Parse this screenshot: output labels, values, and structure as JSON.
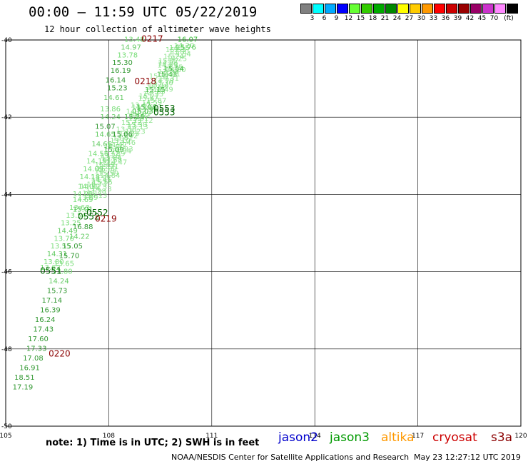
{
  "header": {
    "title": "00:00 – 11:59 UTC 05/22/2019",
    "subtitle": "12 hour collection of altimeter wave heights"
  },
  "legend": {
    "unit": "(ft)",
    "colors": [
      "#808080",
      "#00ffff",
      "#00aaff",
      "#0000ff",
      "#66ff33",
      "#33cc00",
      "#00aa00",
      "#008800",
      "#ffff00",
      "#ffcc00",
      "#ff9900",
      "#ff0000",
      "#cc0000",
      "#990000",
      "#990066",
      "#cc33cc",
      "#ff88ff",
      "#000000"
    ],
    "labels": [
      "3",
      "6",
      "9",
      "12",
      "15",
      "18",
      "21",
      "24",
      "27",
      "30",
      "33",
      "36",
      "39",
      "42",
      "45",
      "70"
    ]
  },
  "map": {
    "x_ticks": [
      "105",
      "108",
      "111",
      "114",
      "117",
      "120"
    ],
    "y_ticks": [
      "-40",
      "-42",
      "-44",
      "-46",
      "-48",
      "-50"
    ]
  },
  "chart_data": {
    "type": "scatter",
    "title": "12 hour collection of altimeter wave heights",
    "xlabel": "",
    "ylabel": "",
    "xlim": [
      105,
      120
    ],
    "ylim": [
      -50,
      -40
    ],
    "grid": true,
    "time_labels": [
      {
        "text": "0217",
        "lon": 108.95,
        "lat": -40.05,
        "color": "#8b0000"
      },
      {
        "text": "0218",
        "lon": 108.75,
        "lat": -41.15,
        "color": "#8b0000"
      },
      {
        "text": "0553",
        "lon": 109.3,
        "lat": -41.85,
        "color": "#006400"
      },
      {
        "text": "0553",
        "lon": 109.3,
        "lat": -41.95,
        "color": "#006400"
      },
      {
        "text": "0552",
        "lon": 107.35,
        "lat": -44.55,
        "color": "#006400"
      },
      {
        "text": "0552",
        "lon": 107.1,
        "lat": -44.65,
        "color": "#006400"
      },
      {
        "text": "0219",
        "lon": 107.6,
        "lat": -44.7,
        "color": "#8b0000"
      },
      {
        "text": "0551",
        "lon": 106.0,
        "lat": -46.05,
        "color": "#006400"
      },
      {
        "text": "0220",
        "lon": 106.25,
        "lat": -48.2,
        "color": "#8b0000"
      }
    ],
    "points": [
      {
        "v": "13.48",
        "lon": 108.45,
        "lat": -40.05,
        "c": "#77dd77"
      },
      {
        "v": "16.07",
        "lon": 110.0,
        "lat": -40.05,
        "c": "#33bb33"
      },
      {
        "v": "14.97",
        "lon": 108.35,
        "lat": -40.25,
        "c": "#66cc66"
      },
      {
        "v": "15.76",
        "lon": 109.95,
        "lat": -40.25,
        "c": "#55cc55"
      },
      {
        "v": "13.78",
        "lon": 108.25,
        "lat": -40.45,
        "c": "#77dd77"
      },
      {
        "v": "15.30",
        "lon": 108.1,
        "lat": -40.65,
        "c": "#339933"
      },
      {
        "v": "15.54",
        "lon": 109.6,
        "lat": -40.8,
        "c": "#44bb44"
      },
      {
        "v": "16.19",
        "lon": 108.05,
        "lat": -40.85,
        "c": "#339933"
      },
      {
        "v": "15.43",
        "lon": 109.4,
        "lat": -40.95,
        "c": "#44bb44"
      },
      {
        "v": "16.14",
        "lon": 107.9,
        "lat": -41.1,
        "c": "#339933"
      },
      {
        "v": "15.23",
        "lon": 107.95,
        "lat": -41.3,
        "c": "#339933"
      },
      {
        "v": "15.15",
        "lon": 109.05,
        "lat": -41.35,
        "c": "#44bb44"
      },
      {
        "v": "14.61",
        "lon": 107.85,
        "lat": -41.55,
        "c": "#66cc66"
      },
      {
        "v": "15.06",
        "lon": 108.8,
        "lat": -41.8,
        "c": "#44bb44"
      },
      {
        "v": "13.86",
        "lon": 107.75,
        "lat": -41.85,
        "c": "#77dd77"
      },
      {
        "v": "15.03",
        "lon": 108.7,
        "lat": -41.9,
        "c": "#44bb44"
      },
      {
        "v": "14.24",
        "lon": 107.75,
        "lat": -42.05,
        "c": "#66cc66"
      },
      {
        "v": "15.25",
        "lon": 108.45,
        "lat": -42.05,
        "c": "#44bb44"
      },
      {
        "v": "15.07",
        "lon": 107.6,
        "lat": -42.3,
        "c": "#339933"
      },
      {
        "v": "14.65",
        "lon": 107.6,
        "lat": -42.5,
        "c": "#66cc66"
      },
      {
        "v": "15.06",
        "lon": 108.1,
        "lat": -42.5,
        "c": "#339933"
      },
      {
        "v": "14.66",
        "lon": 107.5,
        "lat": -42.75,
        "c": "#66cc66"
      },
      {
        "v": "15.09",
        "lon": 107.85,
        "lat": -42.9,
        "c": "#44bb44"
      },
      {
        "v": "14.56",
        "lon": 107.4,
        "lat": -43.0,
        "c": "#77dd77"
      },
      {
        "v": "14.19",
        "lon": 107.35,
        "lat": -43.2,
        "c": "#77dd77"
      },
      {
        "v": "14.09",
        "lon": 107.25,
        "lat": -43.4,
        "c": "#77dd77"
      },
      {
        "v": "14.18",
        "lon": 107.15,
        "lat": -43.6,
        "c": "#77dd77"
      },
      {
        "v": "14.01",
        "lon": 107.1,
        "lat": -43.85,
        "c": "#77dd77"
      },
      {
        "v": "14.02",
        "lon": 106.95,
        "lat": -44.05,
        "c": "#77dd77"
      },
      {
        "v": "14.69",
        "lon": 106.95,
        "lat": -44.2,
        "c": "#77dd77"
      },
      {
        "v": "13.63",
        "lon": 106.85,
        "lat": -44.4,
        "c": "#77dd77"
      },
      {
        "v": "15.01",
        "lon": 106.95,
        "lat": -44.45,
        "c": "#44bb44"
      },
      {
        "v": "13.54",
        "lon": 106.75,
        "lat": -44.6,
        "c": "#77dd77"
      },
      {
        "v": "13.25",
        "lon": 106.6,
        "lat": -44.8,
        "c": "#77dd77"
      },
      {
        "v": "16.88",
        "lon": 106.95,
        "lat": -44.9,
        "c": "#339933"
      },
      {
        "v": "14.49",
        "lon": 106.5,
        "lat": -45.0,
        "c": "#66cc66"
      },
      {
        "v": "14.22",
        "lon": 106.85,
        "lat": -45.15,
        "c": "#66cc66"
      },
      {
        "v": "13.70",
        "lon": 106.4,
        "lat": -45.2,
        "c": "#77dd77"
      },
      {
        "v": "13.55",
        "lon": 106.3,
        "lat": -45.4,
        "c": "#77dd77"
      },
      {
        "v": "15.05",
        "lon": 106.65,
        "lat": -45.4,
        "c": "#339933"
      },
      {
        "v": "14.31",
        "lon": 106.2,
        "lat": -45.6,
        "c": "#66cc66"
      },
      {
        "v": "15.70",
        "lon": 106.55,
        "lat": -45.65,
        "c": "#339933"
      },
      {
        "v": "13.80",
        "lon": 106.1,
        "lat": -45.8,
        "c": "#77dd77"
      },
      {
        "v": "13.65",
        "lon": 106.4,
        "lat": -45.85,
        "c": "#77dd77"
      },
      {
        "v": "13.62",
        "lon": 106.0,
        "lat": -45.95,
        "c": "#77dd77"
      },
      {
        "v": "13.80",
        "lon": 106.35,
        "lat": -46.05,
        "c": "#77dd77"
      },
      {
        "v": "14.24",
        "lon": 106.25,
        "lat": -46.3,
        "c": "#66cc66"
      },
      {
        "v": "15.73",
        "lon": 106.2,
        "lat": -46.55,
        "c": "#339933"
      },
      {
        "v": "17.14",
        "lon": 106.05,
        "lat": -46.8,
        "c": "#339933"
      },
      {
        "v": "16.39",
        "lon": 106.0,
        "lat": -47.05,
        "c": "#339933"
      },
      {
        "v": "16.24",
        "lon": 105.85,
        "lat": -47.3,
        "c": "#339933"
      },
      {
        "v": "17.43",
        "lon": 105.8,
        "lat": -47.55,
        "c": "#339933"
      },
      {
        "v": "17.60",
        "lon": 105.65,
        "lat": -47.8,
        "c": "#339933"
      },
      {
        "v": "17.33",
        "lon": 105.6,
        "lat": -48.05,
        "c": "#339933"
      },
      {
        "v": "17.08",
        "lon": 105.5,
        "lat": -48.3,
        "c": "#339933"
      },
      {
        "v": "16.91",
        "lon": 105.4,
        "lat": -48.55,
        "c": "#339933"
      },
      {
        "v": "18.51",
        "lon": 105.25,
        "lat": -48.8,
        "c": "#339933"
      },
      {
        "v": "17.19",
        "lon": 105.2,
        "lat": -49.05,
        "c": "#339933"
      }
    ],
    "clutter": {
      "color": "#77dd77"
    }
  },
  "footer": {
    "note": "note: 1) Time is in UTC; 2) SWH is in feet",
    "satellites": [
      {
        "name": "jason2",
        "color": "#0000cc"
      },
      {
        "name": "jason3",
        "color": "#009900"
      },
      {
        "name": "altika",
        "color": "#ff9900"
      },
      {
        "name": "cryosat",
        "color": "#cc0000"
      },
      {
        "name": "s3a",
        "color": "#8b0000"
      }
    ],
    "credit": "NOAA/NESDIS Center for Satellite Applications and Research",
    "timestamp": "May 23 12:27:12 UTC 2019"
  }
}
